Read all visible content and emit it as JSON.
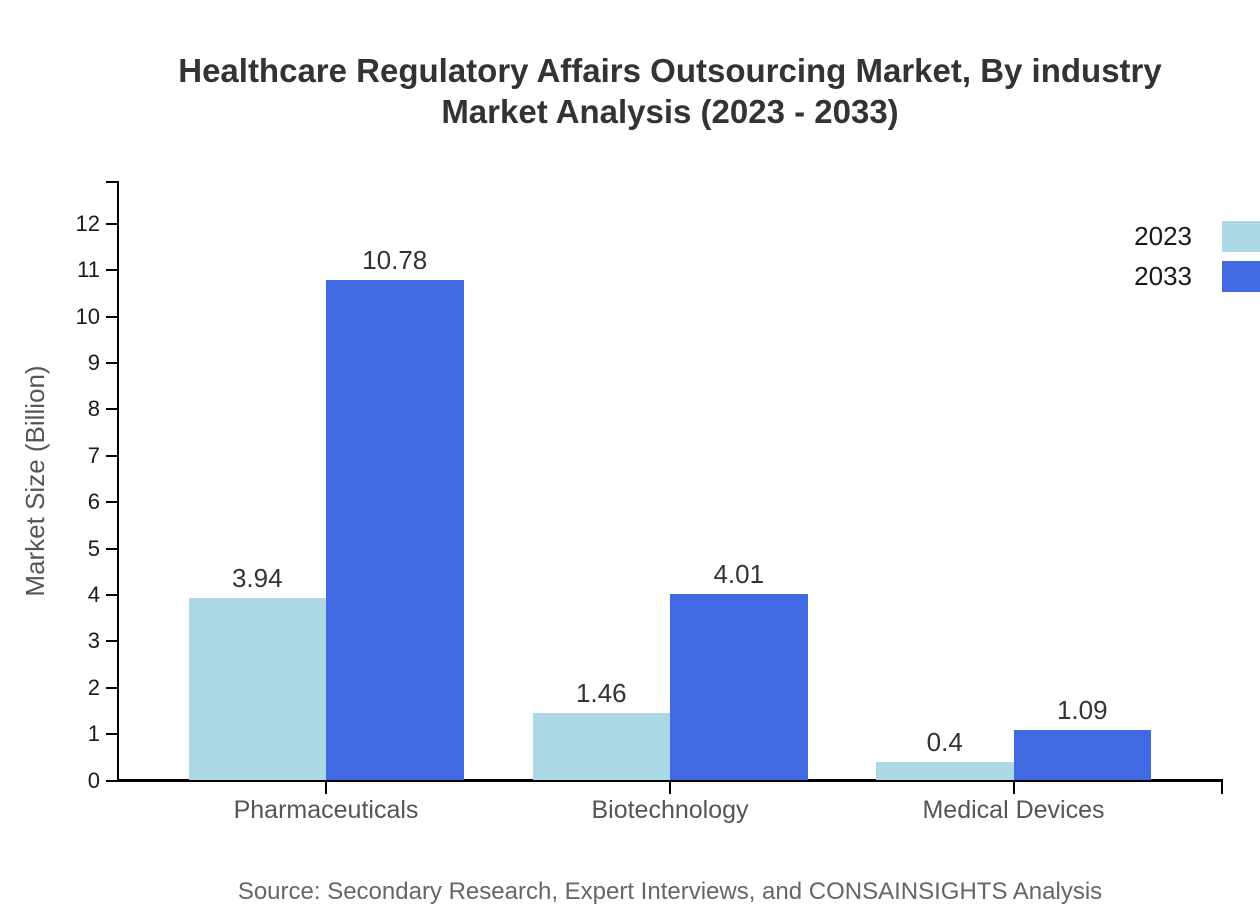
{
  "title": {
    "line1": "Healthcare Regulatory Affairs Outsourcing Market, By industry",
    "line2": "Market Analysis (2023 - 2033)"
  },
  "source": "Source: Secondary Research, Expert Interviews, and CONSAINSIGHTS Analysis",
  "colors": {
    "series_2023": "#ADD8E6",
    "series_2033": "#4169E1",
    "axis": "#000000",
    "title_text": "#333333",
    "tick_label_text": "#1a1a1a",
    "category_label_text": "#555555",
    "source_text": "#666666"
  },
  "chart_data": {
    "type": "bar",
    "title": "Healthcare Regulatory Affairs Outsourcing Market, By industry Market Analysis (2023 - 2033)",
    "categories": [
      "Pharmaceuticals",
      "Biotechnology",
      "Medical Devices"
    ],
    "series": [
      {
        "name": "2023",
        "color": "#ADD8E6",
        "values": [
          3.94,
          1.46,
          0.4
        ]
      },
      {
        "name": "2033",
        "color": "#4169E1",
        "values": [
          10.78,
          4.01,
          1.09
        ]
      }
    ],
    "xlabel": "",
    "ylabel": "Market Size (Billion)",
    "ylim": [
      0,
      12.9
    ],
    "yticks": [
      0,
      1,
      2,
      3,
      4,
      5,
      6,
      7,
      8,
      9,
      10,
      11,
      12
    ],
    "grid": false,
    "legend_position": "upper-right",
    "value_labels_shown": true
  }
}
